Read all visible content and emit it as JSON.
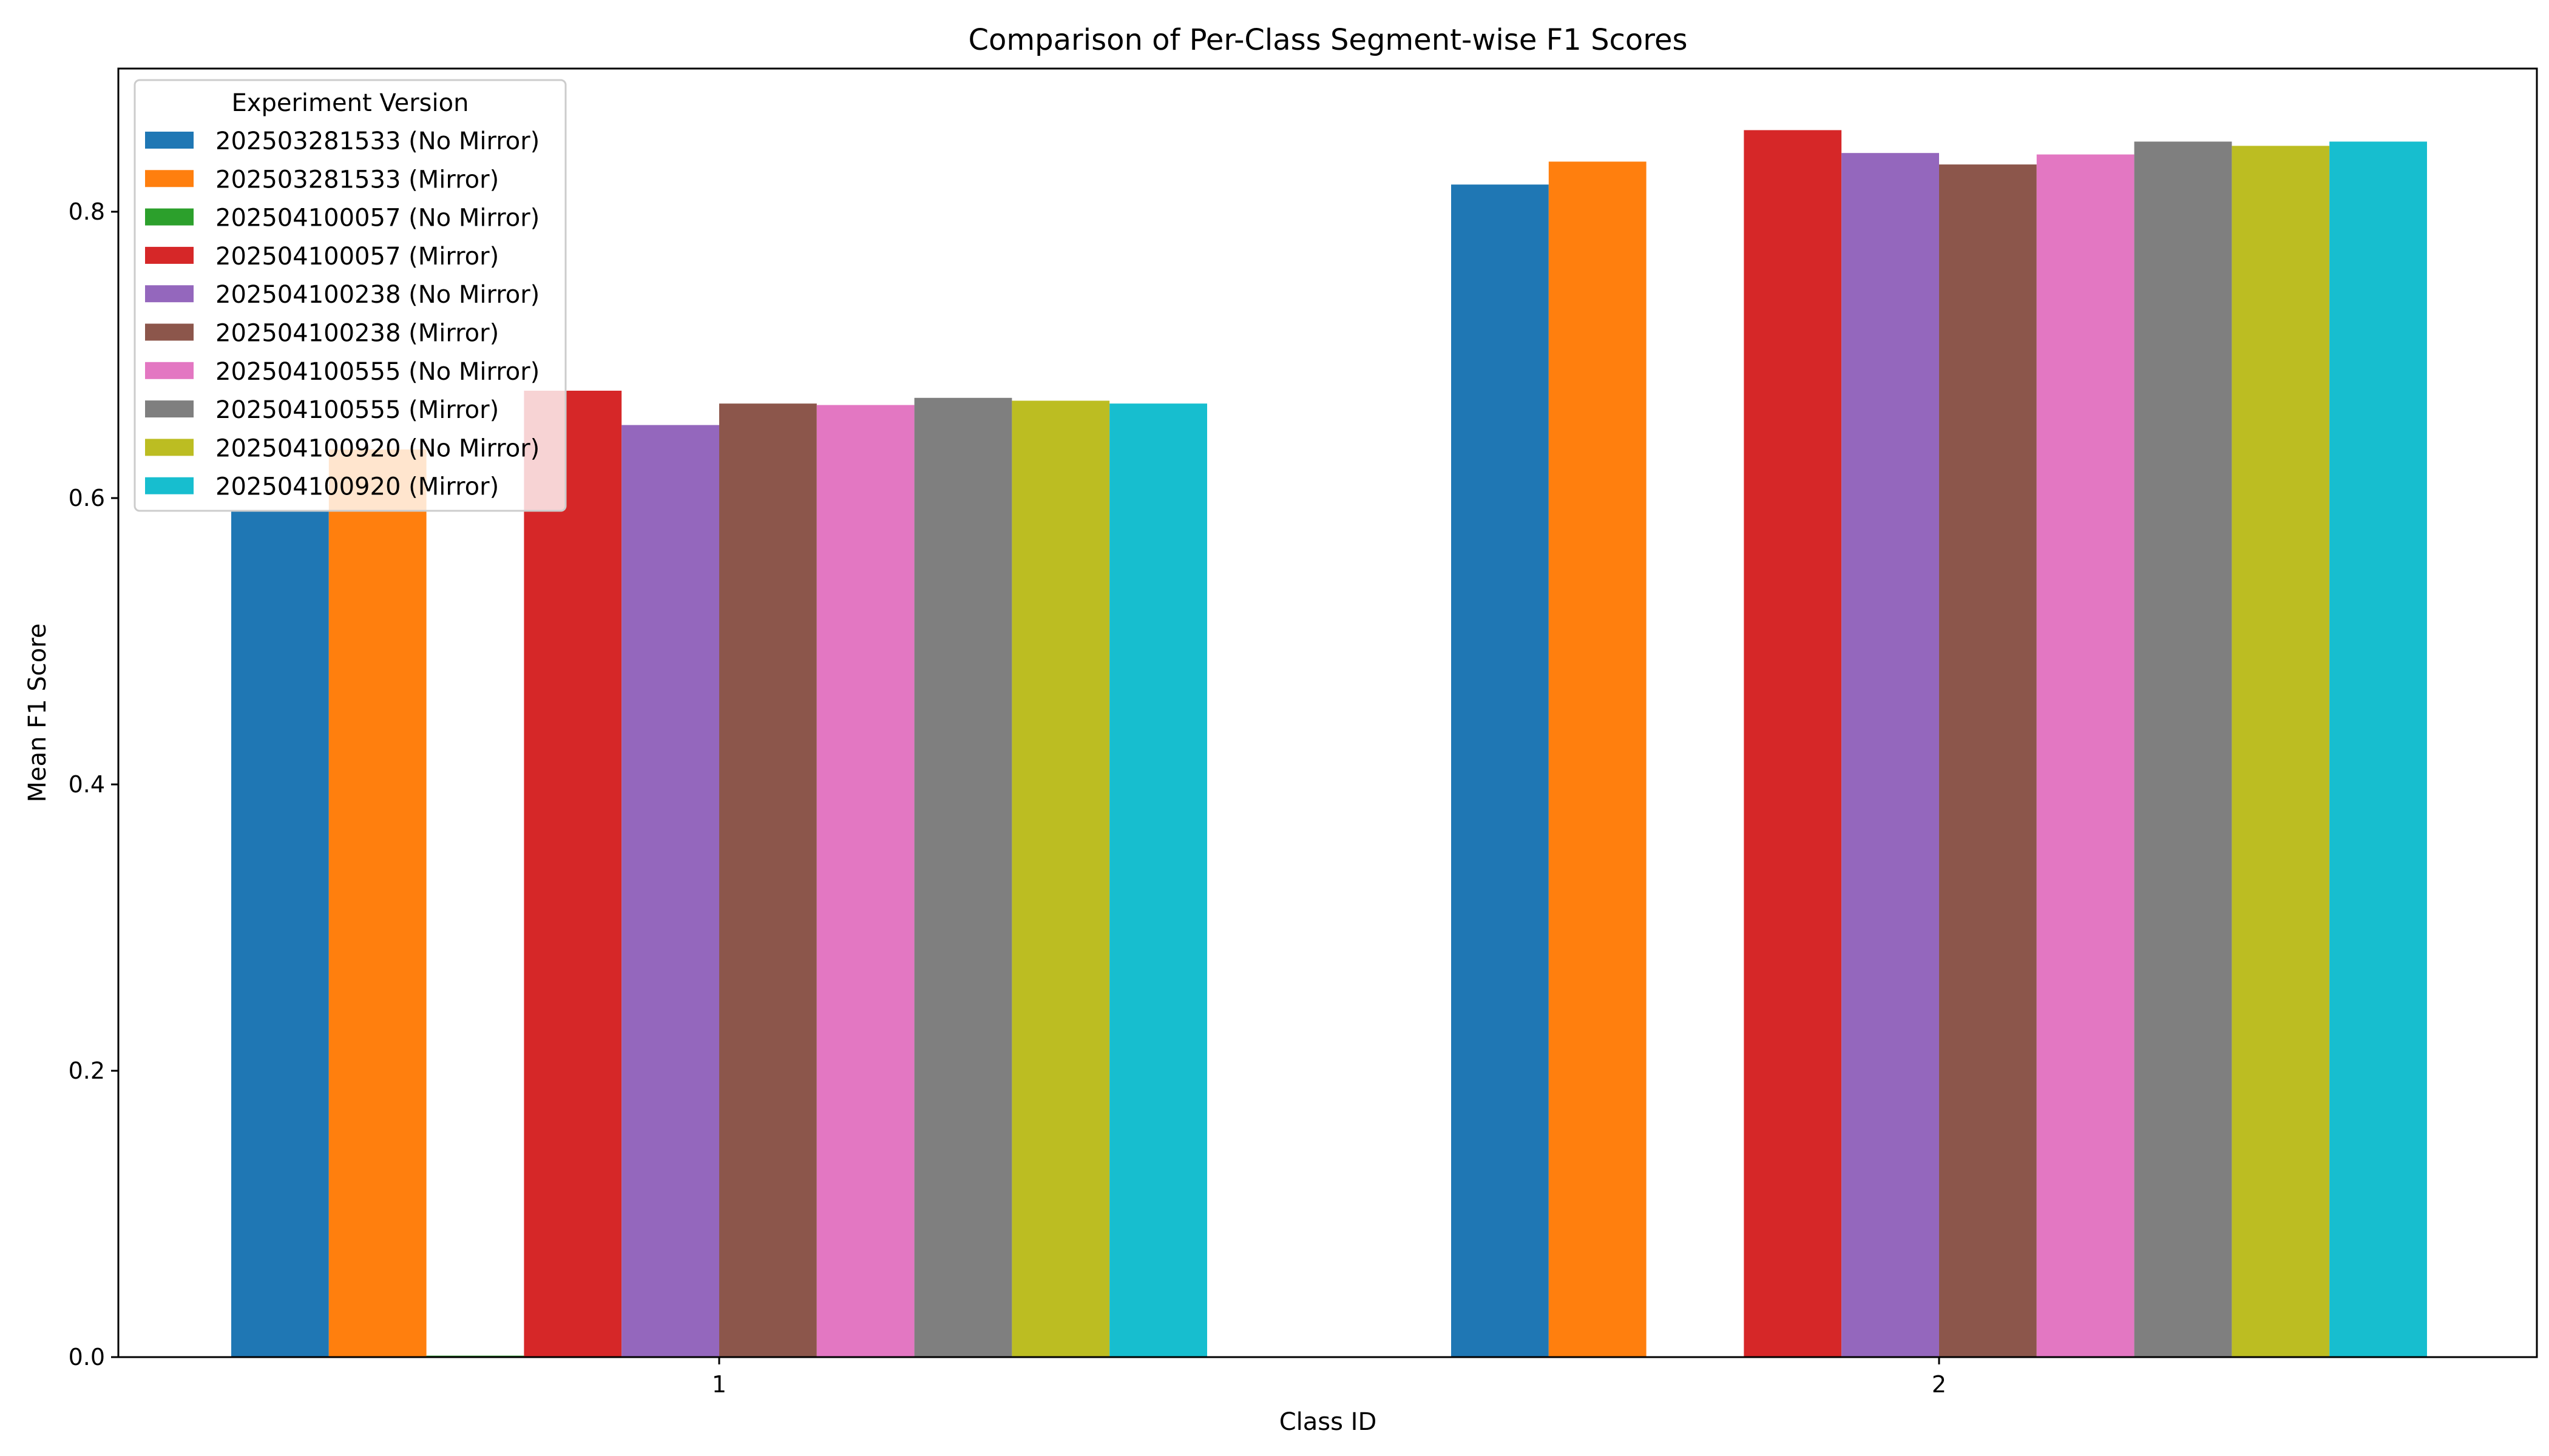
{
  "chart_data": {
    "type": "bar",
    "title": "Comparison of Per-Class Segment-wise F1 Scores",
    "xlabel": "Class ID",
    "ylabel": "Mean F1 Score",
    "categories": [
      "1",
      "2"
    ],
    "ylim": [
      0,
      0.9
    ],
    "yticks": [
      "0.0",
      "0.2",
      "0.4",
      "0.6",
      "0.8"
    ],
    "legend_title": "Experiment Version",
    "legend_position": "upper-left",
    "grid": false,
    "series": [
      {
        "name": "202503281533 (No Mirror)",
        "color": "#1f77b4",
        "values": [
          0.591,
          0.819
        ]
      },
      {
        "name": "202503281533 (Mirror)",
        "color": "#ff7f0e",
        "values": [
          0.634,
          0.835
        ]
      },
      {
        "name": "202504100057 (No Mirror)",
        "color": "#2ca02c",
        "values": [
          0.001,
          0.0
        ]
      },
      {
        "name": "202504100057 (Mirror)",
        "color": "#d62728",
        "values": [
          0.675,
          0.857
        ]
      },
      {
        "name": "202504100238 (No Mirror)",
        "color": "#9467bd",
        "values": [
          0.651,
          0.841
        ]
      },
      {
        "name": "202504100238 (Mirror)",
        "color": "#8c564b",
        "values": [
          0.666,
          0.833
        ]
      },
      {
        "name": "202504100555 (No Mirror)",
        "color": "#e377c2",
        "values": [
          0.665,
          0.84
        ]
      },
      {
        "name": "202504100555 (Mirror)",
        "color": "#7f7f7f",
        "values": [
          0.67,
          0.849
        ]
      },
      {
        "name": "202504100920 (No Mirror)",
        "color": "#bcbd22",
        "values": [
          0.668,
          0.846
        ]
      },
      {
        "name": "202504100920 (Mirror)",
        "color": "#17becf",
        "values": [
          0.666,
          0.849
        ]
      }
    ]
  }
}
